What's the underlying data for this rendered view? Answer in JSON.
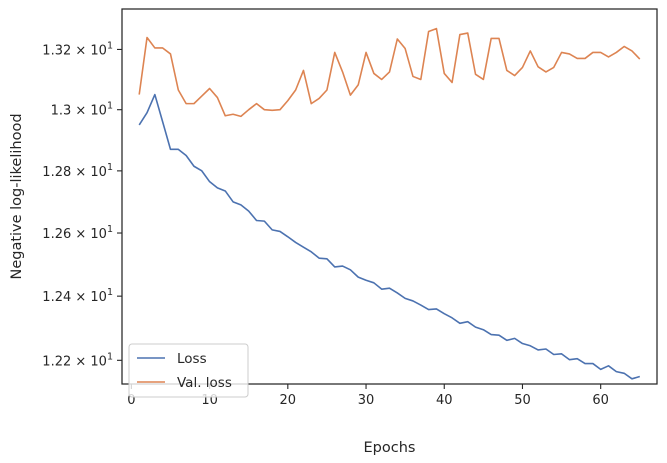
{
  "chart_data": {
    "type": "line",
    "title": "",
    "xlabel": "Epochs",
    "ylabel": "Negative log-likelihood",
    "xlim": [
      -1.2,
      67.2
    ],
    "ylim": [
      12.127,
      13.336
    ],
    "y_scale": "log",
    "x_ticks": [
      0,
      10,
      20,
      30,
      40,
      50,
      60
    ],
    "y_ticks": [
      {
        "value": 12.2,
        "mantissa": "1.22",
        "base": "10",
        "exp": "1"
      },
      {
        "value": 12.4,
        "mantissa": "1.24",
        "base": "10",
        "exp": "1"
      },
      {
        "value": 12.6,
        "mantissa": "1.26",
        "base": "10",
        "exp": "1"
      },
      {
        "value": 12.8,
        "mantissa": "1.28",
        "base": "10",
        "exp": "1"
      },
      {
        "value": 13.0,
        "mantissa": "1.3",
        "base": "10",
        "exp": "1"
      },
      {
        "value": 13.2,
        "mantissa": "1.32",
        "base": "10",
        "exp": "1"
      }
    ],
    "grid": false,
    "legend_position": "lower-left",
    "x": [
      1,
      2,
      3,
      4,
      5,
      6,
      7,
      8,
      9,
      10,
      11,
      12,
      13,
      14,
      15,
      16,
      17,
      18,
      19,
      20,
      21,
      22,
      23,
      24,
      25,
      26,
      27,
      28,
      29,
      30,
      31,
      32,
      33,
      34,
      35,
      36,
      37,
      38,
      39,
      40,
      41,
      42,
      43,
      44,
      45,
      46,
      47,
      48,
      49,
      50,
      51,
      52,
      53,
      54,
      55,
      56,
      57,
      58,
      59,
      60,
      61,
      62,
      63,
      64,
      65
    ],
    "series": [
      {
        "name": "Loss",
        "color": "#4c72b0",
        "values": [
          12.95,
          12.99,
          13.05,
          12.96,
          12.87,
          12.87,
          12.85,
          12.815,
          12.8,
          12.765,
          12.745,
          12.735,
          12.7,
          12.69,
          12.67,
          12.64,
          12.638,
          12.61,
          12.605,
          12.588,
          12.57,
          12.555,
          12.54,
          12.52,
          12.518,
          12.492,
          12.495,
          12.483,
          12.46,
          12.45,
          12.442,
          12.422,
          12.425,
          12.41,
          12.393,
          12.385,
          12.372,
          12.358,
          12.36,
          12.345,
          12.332,
          12.315,
          12.32,
          12.303,
          12.295,
          12.28,
          12.278,
          12.262,
          12.268,
          12.252,
          12.245,
          12.232,
          12.235,
          12.218,
          12.22,
          12.202,
          12.205,
          12.19,
          12.19,
          12.172,
          12.183,
          12.165,
          12.16,
          12.143,
          12.15
        ]
      },
      {
        "name": "Val. loss",
        "color": "#dd8452",
        "values": [
          13.05,
          13.24,
          13.205,
          13.205,
          13.185,
          13.065,
          13.02,
          13.02,
          13.045,
          13.07,
          13.04,
          12.98,
          12.985,
          12.978,
          13.0,
          13.02,
          13.0,
          12.998,
          13.0,
          13.03,
          13.065,
          13.13,
          13.02,
          13.037,
          13.065,
          13.19,
          13.125,
          13.048,
          13.082,
          13.19,
          13.12,
          13.1,
          13.125,
          13.235,
          13.203,
          13.11,
          13.1,
          13.26,
          13.27,
          13.12,
          13.09,
          13.25,
          13.255,
          13.117,
          13.1,
          13.237,
          13.237,
          13.13,
          13.113,
          13.14,
          13.195,
          13.142,
          13.125,
          13.14,
          13.19,
          13.185,
          13.17,
          13.17,
          13.19,
          13.19,
          13.175,
          13.19,
          13.21,
          13.195,
          13.168
        ]
      }
    ]
  }
}
